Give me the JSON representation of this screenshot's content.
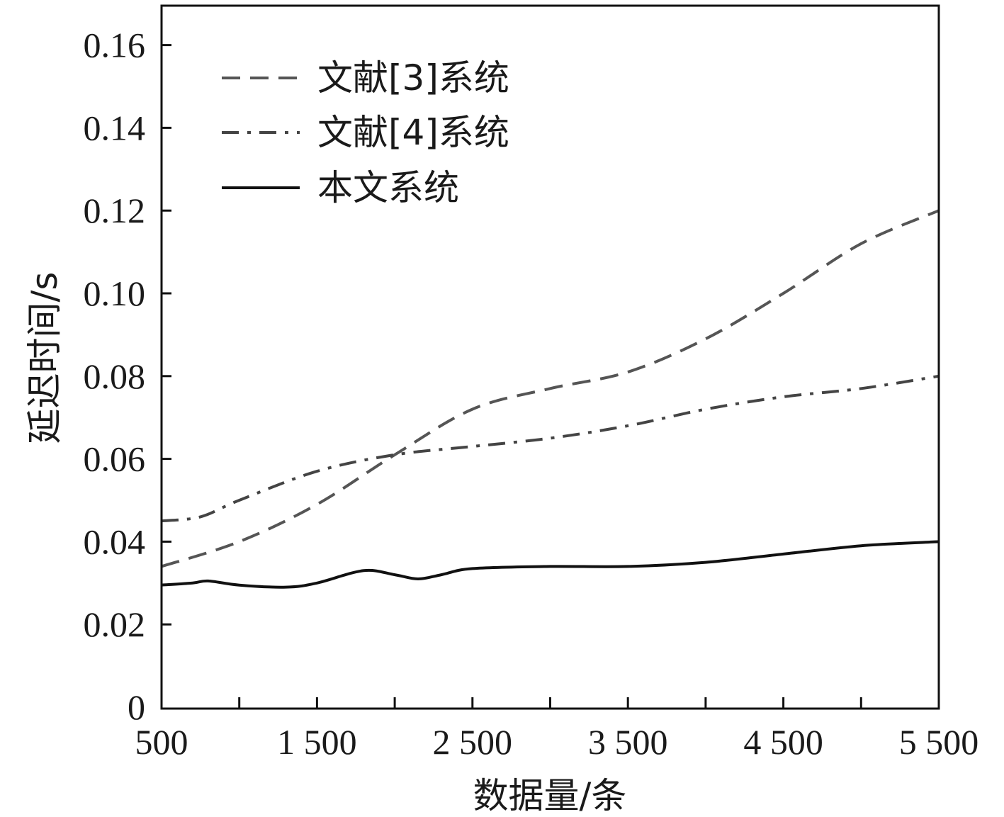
{
  "chart_data": {
    "type": "line",
    "xlabel": "数据量/条",
    "ylabel": "延迟时间/s",
    "xlim": [
      500,
      5500
    ],
    "ylim": [
      0,
      0.17
    ],
    "x_ticks": [
      {
        "value": 500,
        "label": "500"
      },
      {
        "value": 1500,
        "label": "1 500"
      },
      {
        "value": 2500,
        "label": "2 500"
      },
      {
        "value": 3500,
        "label": "3 500"
      },
      {
        "value": 4500,
        "label": "4 500"
      },
      {
        "value": 5500,
        "label": "5 500"
      }
    ],
    "x_minor_ticks": [
      1000,
      2000,
      3000,
      4000,
      5000
    ],
    "y_ticks": [
      {
        "value": 0,
        "label": "0"
      },
      {
        "value": 0.02,
        "label": "0.02"
      },
      {
        "value": 0.04,
        "label": "0.04"
      },
      {
        "value": 0.06,
        "label": "0.06"
      },
      {
        "value": 0.08,
        "label": "0.08"
      },
      {
        "value": 0.1,
        "label": "0.10"
      },
      {
        "value": 0.12,
        "label": "0.12"
      },
      {
        "value": 0.14,
        "label": "0.14"
      },
      {
        "value": 0.16,
        "label": "0.16"
      }
    ],
    "grid": false,
    "legend_position": "top-left",
    "series": [
      {
        "name": "文献[3]系统",
        "style": "dashed",
        "color": "#555555",
        "x": [
          500,
          1000,
          1500,
          2000,
          2500,
          3000,
          3500,
          4000,
          4500,
          5000,
          5500
        ],
        "y": [
          0.034,
          0.04,
          0.049,
          0.061,
          0.072,
          0.077,
          0.081,
          0.089,
          0.1,
          0.112,
          0.12
        ]
      },
      {
        "name": "文献[4]系统",
        "style": "dashdot",
        "color": "#444444",
        "x": [
          500,
          750,
          1000,
          1500,
          2000,
          2500,
          3000,
          3500,
          4000,
          4500,
          5000,
          5500
        ],
        "y": [
          0.045,
          0.046,
          0.05,
          0.057,
          0.061,
          0.063,
          0.065,
          0.068,
          0.072,
          0.075,
          0.077,
          0.08
        ]
      },
      {
        "name": "本文系统",
        "style": "solid",
        "color": "#111111",
        "x": [
          500,
          700,
          800,
          1000,
          1300,
          1500,
          1800,
          2000,
          2150,
          2300,
          2500,
          3000,
          3500,
          4000,
          4500,
          5000,
          5500
        ],
        "y": [
          0.0295,
          0.03,
          0.0305,
          0.0295,
          0.029,
          0.03,
          0.033,
          0.032,
          0.031,
          0.032,
          0.0335,
          0.034,
          0.034,
          0.035,
          0.037,
          0.039,
          0.04
        ]
      }
    ]
  }
}
